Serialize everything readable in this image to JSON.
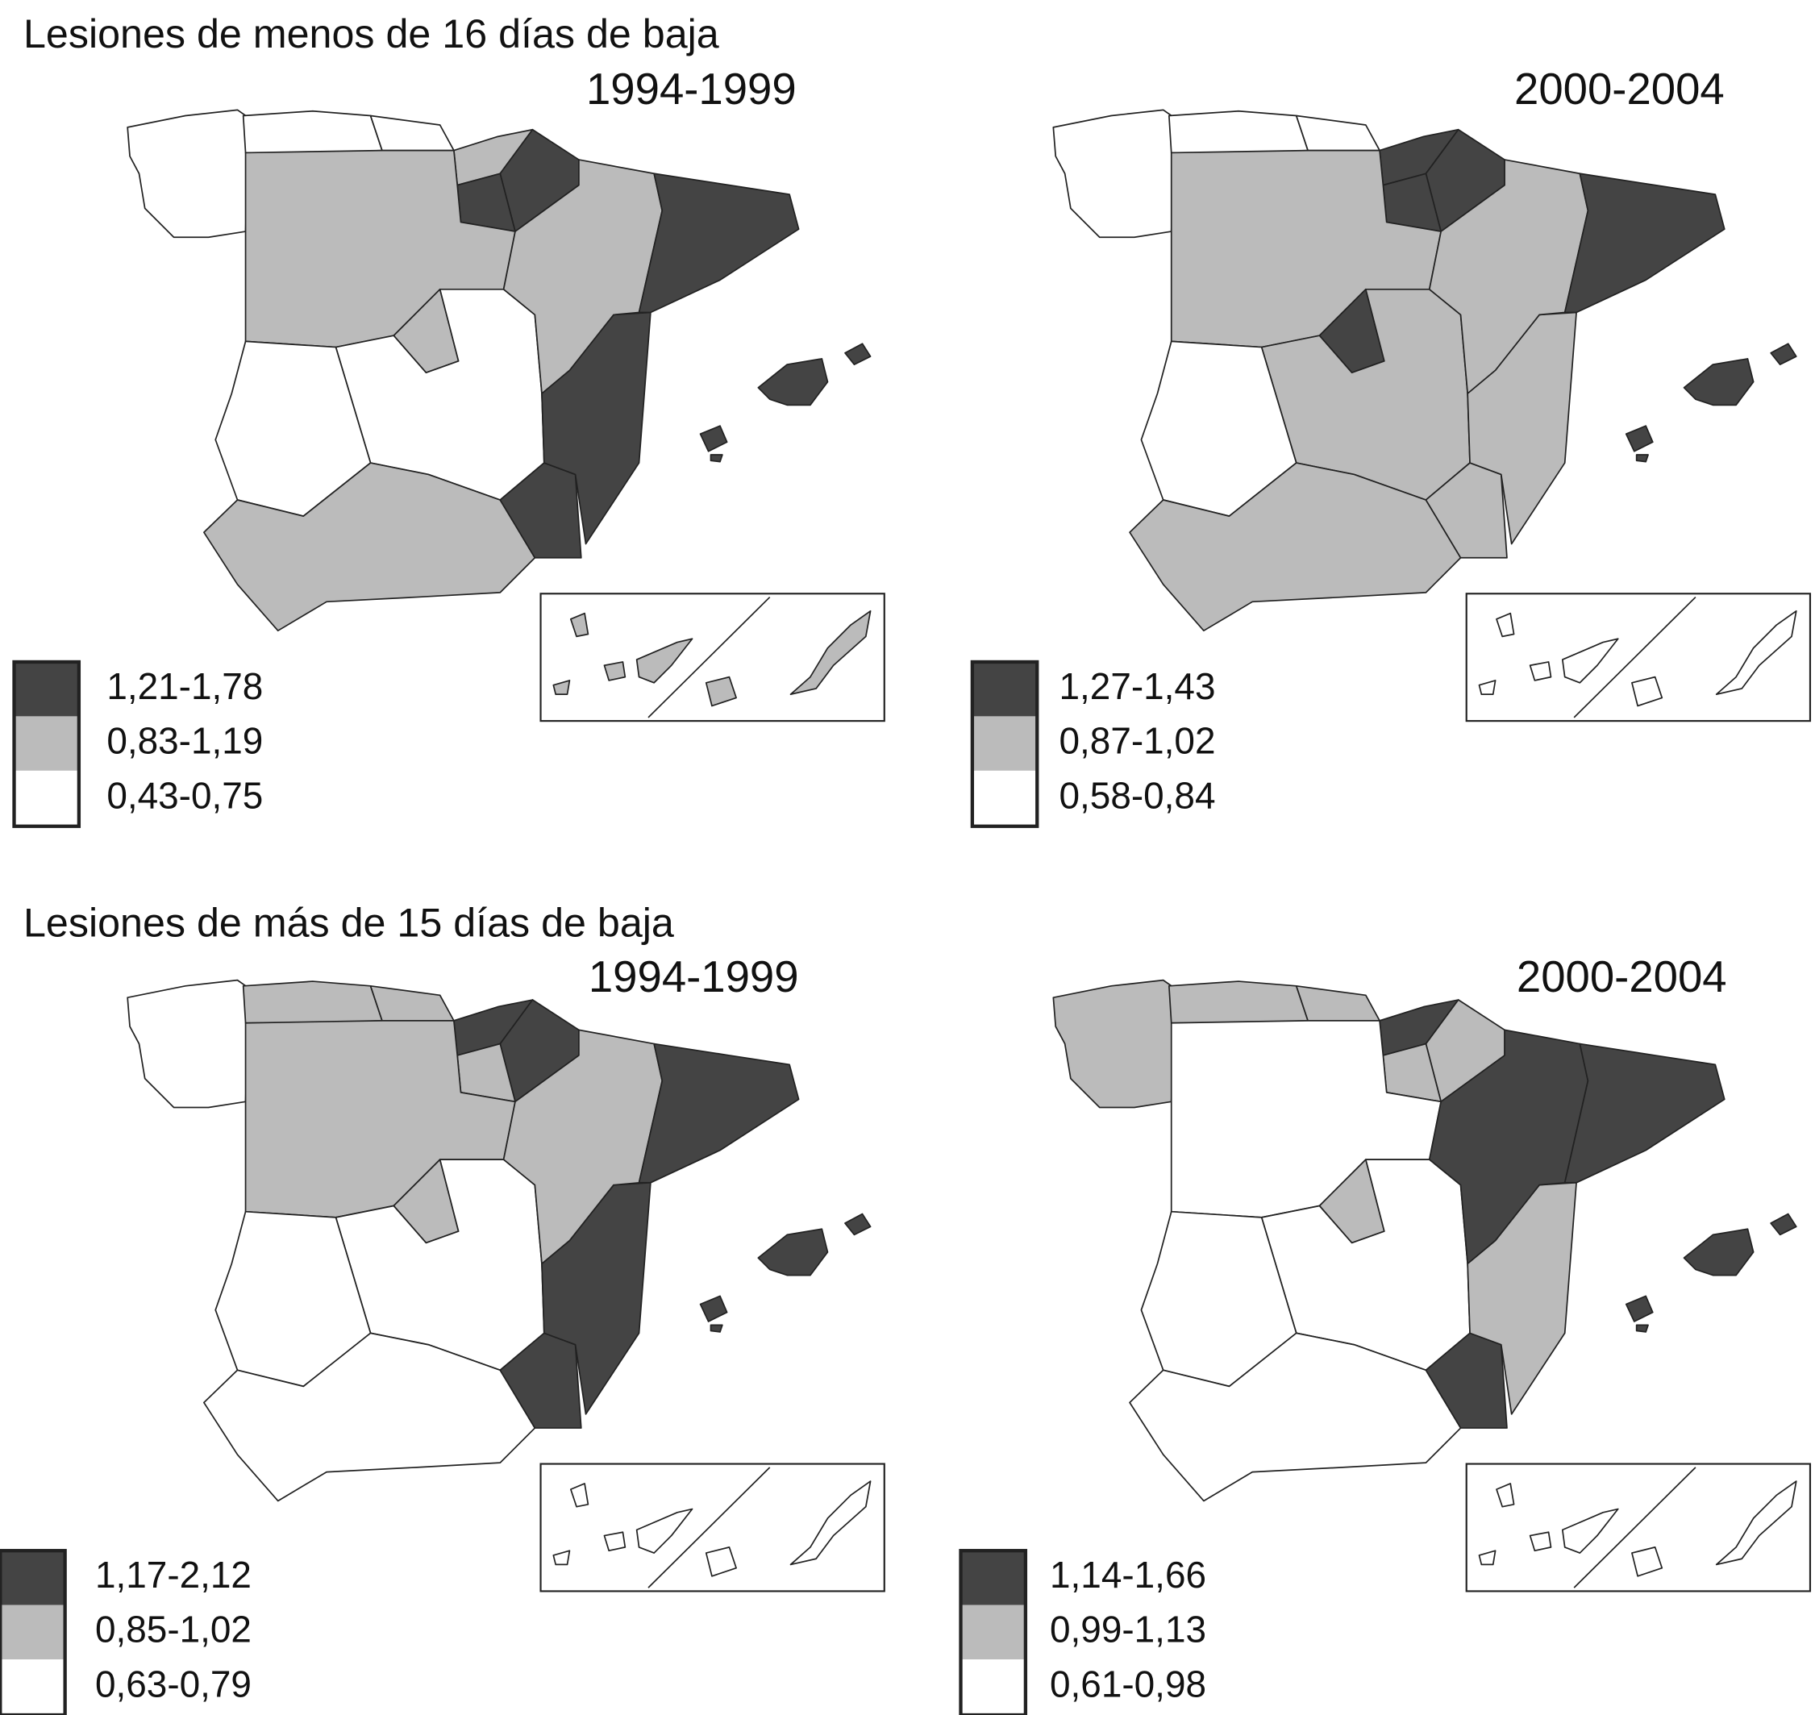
{
  "colors": [
    "#444444",
    "#bbbbbb",
    "#ffffff"
  ],
  "sections": [
    {
      "title": "Lesiones de menos de 16 días de baja",
      "maps": [
        {
          "period": "1994-1999",
          "legend": [
            "1,21-1,78",
            "0,83-1,19",
            "0,43-0,75"
          ]
        },
        {
          "period": "2000-2004",
          "legend": [
            "1,27-1,43",
            "0,87-1,02",
            "0,58-0,84"
          ]
        }
      ]
    },
    {
      "title": "Lesiones de más de 15 días de baja",
      "maps": [
        {
          "period": "1994-1999",
          "legend": [
            "1,17-2,12",
            "0,85-1,02",
            "0,63-0,79"
          ]
        },
        {
          "period": "2000-2004",
          "legend": [
            "1,14-1,66",
            "0,99-1,13",
            "0,61-0,98"
          ]
        }
      ]
    }
  ]
}
